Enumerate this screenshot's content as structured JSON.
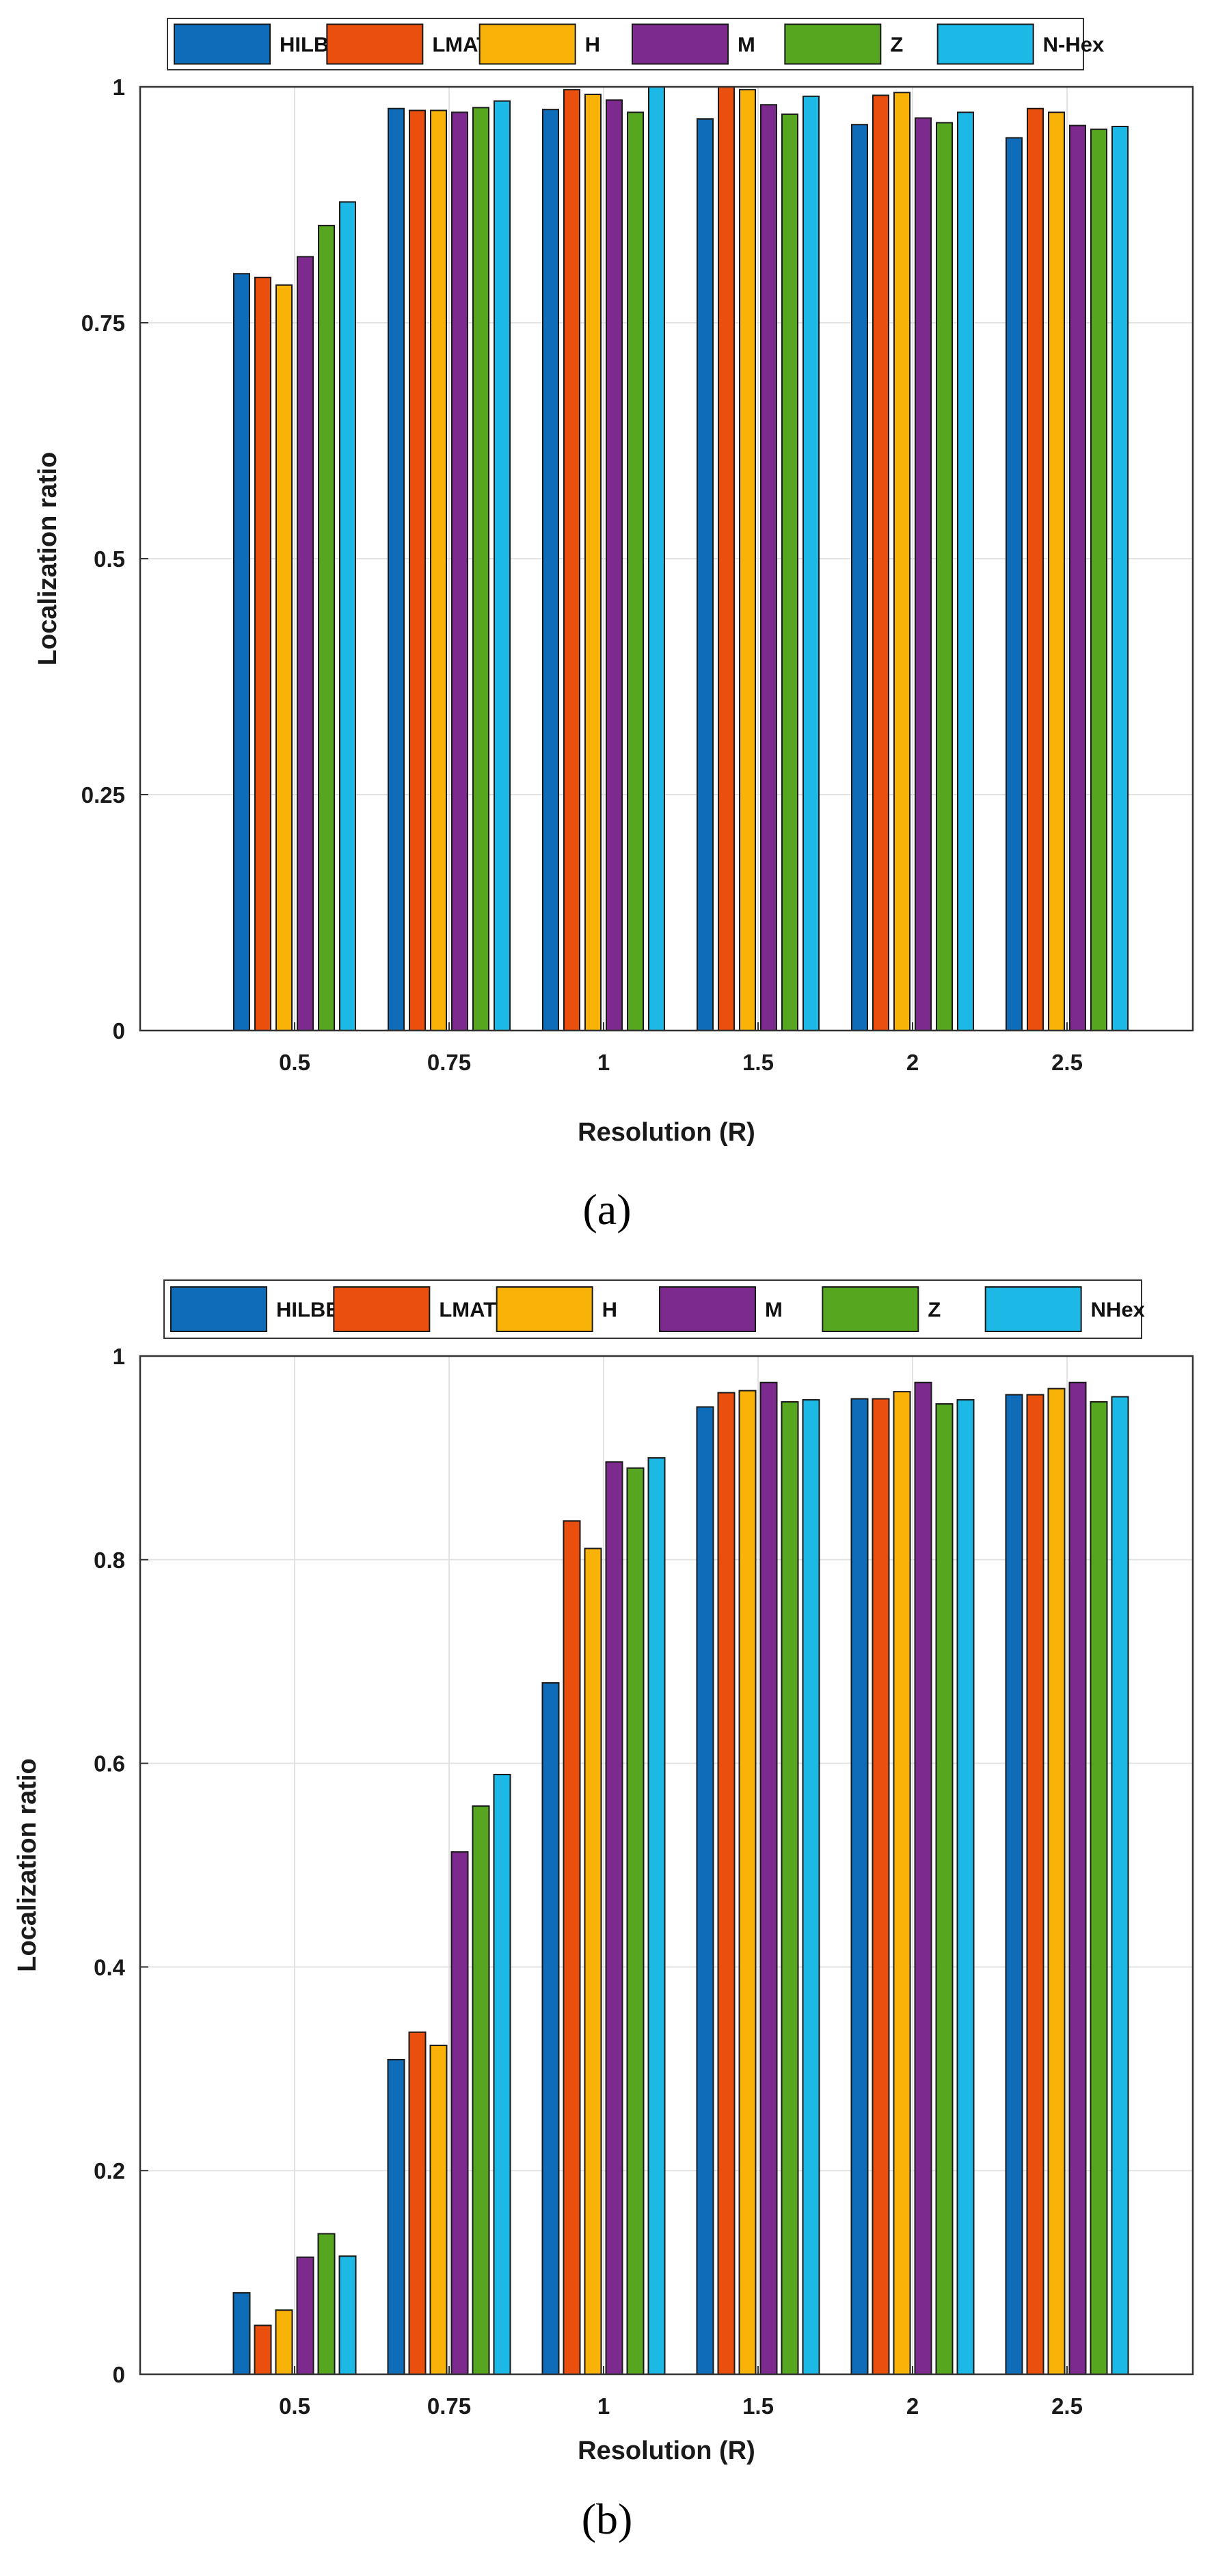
{
  "figure": {
    "captions": [
      "(a)",
      "(b)"
    ]
  },
  "chart_data": [
    {
      "panel": "a",
      "type": "bar",
      "title": "",
      "xlabel": "Resolution (R)",
      "ylabel": "Localization ratio",
      "categories": [
        "0.5",
        "0.75",
        "1",
        "1.5",
        "2",
        "2.5"
      ],
      "ylim": [
        0,
        1
      ],
      "yticks": [
        "0",
        "0.25",
        "0.5",
        "0.75",
        "1"
      ],
      "grid": true,
      "legend_position": "top",
      "colors": [
        "#0f6cb8",
        "#ea4f0d",
        "#f9b207",
        "#7d2a8e",
        "#56a620",
        "#1cb8e6"
      ],
      "series": [
        {
          "name": "HILBERT",
          "values": [
            0.802,
            0.977,
            0.976,
            0.966,
            0.96,
            0.946
          ]
        },
        {
          "name": "LMAT",
          "values": [
            0.798,
            0.975,
            0.997,
            1.0,
            0.991,
            0.977
          ]
        },
        {
          "name": "H",
          "values": [
            0.79,
            0.975,
            0.992,
            0.997,
            0.994,
            0.973
          ]
        },
        {
          "name": "M",
          "values": [
            0.82,
            0.973,
            0.986,
            0.981,
            0.967,
            0.959
          ]
        },
        {
          "name": "Z",
          "values": [
            0.853,
            0.978,
            0.973,
            0.971,
            0.962,
            0.955
          ]
        },
        {
          "name": "N-Hex",
          "values": [
            0.878,
            0.985,
            1.0,
            0.99,
            0.973,
            0.958
          ]
        }
      ]
    },
    {
      "panel": "b",
      "type": "bar",
      "title": "",
      "xlabel": "Resolution (R)",
      "ylabel": "Localization ratio",
      "categories": [
        "0.5",
        "0.75",
        "1",
        "1.5",
        "2",
        "2.5"
      ],
      "ylim": [
        0,
        1
      ],
      "yticks": [
        "0",
        "0.2",
        "0.4",
        "0.6",
        "0.8",
        "1"
      ],
      "grid": true,
      "legend_position": "top",
      "colors": [
        "#0f6cb8",
        "#ea4f0d",
        "#f9b207",
        "#7d2a8e",
        "#56a620",
        "#1cb8e6"
      ],
      "series": [
        {
          "name": "HILBERT",
          "values": [
            0.08,
            0.309,
            0.679,
            0.95,
            0.958,
            0.962
          ]
        },
        {
          "name": "LMAT",
          "values": [
            0.048,
            0.336,
            0.838,
            0.964,
            0.958,
            0.962
          ]
        },
        {
          "name": "H",
          "values": [
            0.063,
            0.323,
            0.811,
            0.966,
            0.965,
            0.968
          ]
        },
        {
          "name": "M",
          "values": [
            0.115,
            0.513,
            0.896,
            0.974,
            0.974,
            0.974
          ]
        },
        {
          "name": "Z",
          "values": [
            0.138,
            0.558,
            0.89,
            0.955,
            0.953,
            0.955
          ]
        },
        {
          "name": "NHex",
          "values": [
            0.116,
            0.589,
            0.9,
            0.957,
            0.957,
            0.96
          ]
        }
      ]
    }
  ]
}
